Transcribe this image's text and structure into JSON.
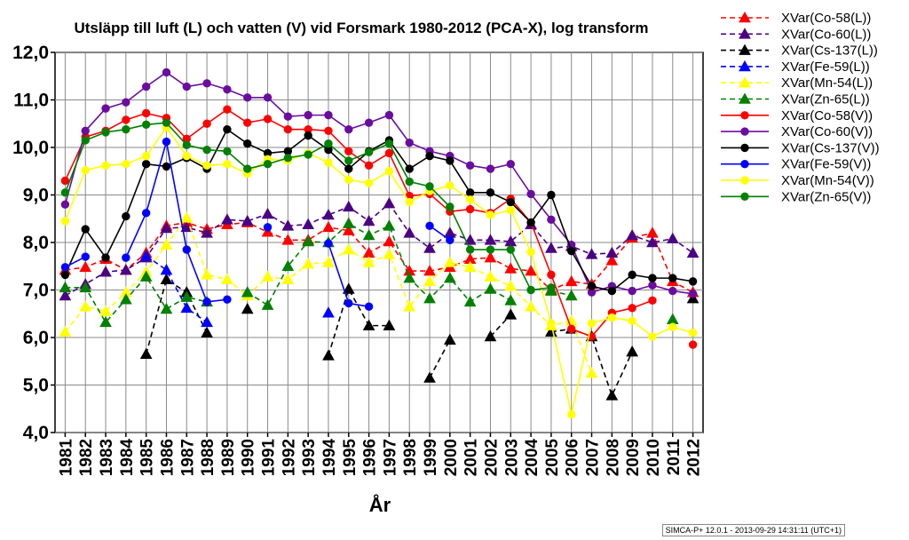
{
  "footer": "SIMCA-P+ 12.0.1 - 2013-09-29 14:31:11 (UTC+1)",
  "chart_data": {
    "type": "line",
    "title": "Utsläpp till luft (L) och vatten (V) vid Forsmark 1980-2012 (PCA-X),  log transform",
    "xlabel": "År",
    "ylabel": "",
    "ylim": [
      4.0,
      12.0
    ],
    "yticks": [
      "4,0",
      "5,0",
      "6,0",
      "7,0",
      "8,0",
      "9,0",
      "10,0",
      "11,0",
      "12,0"
    ],
    "categories": [
      "1981",
      "1982",
      "1983",
      "1984",
      "1985",
      "1986",
      "1987",
      "1988",
      "1989",
      "1990",
      "1991",
      "1992",
      "1993",
      "1994",
      "1995",
      "1996",
      "1997",
      "1998",
      "1999",
      "2000",
      "2001",
      "2002",
      "2003",
      "2004",
      "2005",
      "2006",
      "2007",
      "2008",
      "2009",
      "2010",
      "2011",
      "2012"
    ],
    "grid": true,
    "legend_position": "right",
    "series": [
      {
        "name": "XVar(Co-58(L))",
        "color": "#ff0000",
        "dashed": true,
        "marker": "triangle",
        "values": [
          7.42,
          7.48,
          7.65,
          7.42,
          7.78,
          8.35,
          8.42,
          8.28,
          8.38,
          8.42,
          8.22,
          8.05,
          8.05,
          8.32,
          8.25,
          7.78,
          8.02,
          7.4,
          7.4,
          7.48,
          7.65,
          7.68,
          7.45,
          7.4,
          7.0,
          7.18,
          7.12,
          7.62,
          8.1,
          8.2,
          7.18,
          6.95
        ]
      },
      {
        "name": "XVar(Co-60(L))",
        "color": "#4b0082",
        "dashed": true,
        "marker": "triangle",
        "values": [
          6.88,
          7.12,
          7.38,
          7.42,
          7.68,
          8.3,
          8.32,
          8.2,
          8.48,
          8.45,
          8.6,
          8.35,
          8.38,
          8.58,
          8.75,
          8.45,
          8.82,
          8.2,
          7.88,
          8.2,
          8.05,
          8.05,
          8.02,
          8.38,
          7.88,
          7.92,
          7.75,
          7.78,
          8.15,
          8.0,
          8.08,
          7.78
        ]
      },
      {
        "name": "XVar(Cs-137(L))",
        "color": "#000000",
        "dashed": true,
        "marker": "triangle",
        "values": [
          null,
          null,
          null,
          null,
          5.65,
          7.22,
          6.95,
          6.1,
          null,
          6.6,
          null,
          null,
          null,
          5.62,
          7.02,
          6.25,
          6.25,
          null,
          5.15,
          5.95,
          null,
          6.02,
          6.48,
          null,
          6.12,
          6.18,
          6.02,
          4.78,
          5.7,
          null,
          null,
          6.82
        ]
      },
      {
        "name": "XVar(Fe-59(L))",
        "color": "#0000ff",
        "dashed": true,
        "marker": "triangle",
        "values": [
          null,
          null,
          null,
          null,
          7.72,
          7.42,
          6.62,
          6.32,
          null,
          null,
          null,
          null,
          null,
          6.52,
          null,
          null,
          null,
          null,
          null,
          null,
          null,
          null,
          null,
          null,
          null,
          null,
          null,
          null,
          null,
          null,
          null,
          null
        ]
      },
      {
        "name": "XVar(Mn-54(L))",
        "color": "#ffff00",
        "dashed": true,
        "marker": "triangle",
        "values": [
          6.12,
          6.65,
          6.55,
          6.95,
          7.38,
          7.95,
          8.52,
          7.32,
          7.22,
          6.88,
          7.28,
          7.22,
          7.55,
          7.58,
          7.85,
          7.58,
          7.75,
          6.65,
          7.18,
          7.58,
          7.48,
          7.28,
          7.08,
          6.65,
          6.25,
          6.35,
          5.25,
          null,
          null,
          null,
          null,
          null
        ]
      },
      {
        "name": "XVar(Zn-65(L))",
        "color": "#008000",
        "dashed": true,
        "marker": "triangle",
        "values": [
          7.05,
          7.05,
          6.32,
          6.8,
          7.28,
          6.6,
          6.85,
          6.75,
          null,
          6.95,
          6.68,
          7.5,
          8.02,
          8.0,
          8.4,
          8.15,
          8.35,
          7.25,
          6.82,
          7.25,
          6.75,
          7.02,
          6.78,
          null,
          6.98,
          6.88,
          null,
          null,
          null,
          null,
          6.38,
          null
        ]
      },
      {
        "name": "XVar(Co-58(V))",
        "color": "#ff0000",
        "dashed": false,
        "marker": "circle",
        "values": [
          9.3,
          10.22,
          10.35,
          10.58,
          10.72,
          10.62,
          10.18,
          10.5,
          10.8,
          10.52,
          10.6,
          10.38,
          10.38,
          10.35,
          9.92,
          9.62,
          9.88,
          8.98,
          9.02,
          8.65,
          8.7,
          8.62,
          8.92,
          8.42,
          7.32,
          6.18,
          6.02,
          6.52,
          6.62,
          6.78,
          null,
          5.85
        ]
      },
      {
        "name": "XVar(Co-60(V))",
        "color": "#6a0d9f",
        "dashed": false,
        "marker": "circle",
        "values": [
          8.8,
          10.35,
          10.82,
          10.95,
          11.28,
          11.58,
          11.28,
          11.35,
          11.22,
          11.05,
          11.05,
          10.65,
          10.68,
          10.68,
          10.38,
          10.52,
          10.68,
          10.1,
          9.92,
          9.82,
          9.62,
          9.55,
          9.65,
          9.02,
          8.48,
          7.95,
          6.95,
          7.08,
          6.98,
          7.1,
          6.98,
          6.92
        ]
      },
      {
        "name": "XVar(Cs-137(V))",
        "color": "#000000",
        "dashed": false,
        "marker": "circle",
        "values": [
          7.32,
          8.28,
          7.68,
          8.55,
          9.65,
          9.6,
          9.78,
          9.55,
          10.38,
          10.08,
          9.88,
          9.92,
          10.25,
          9.95,
          9.55,
          9.92,
          10.15,
          9.55,
          9.82,
          9.72,
          9.05,
          9.05,
          8.85,
          8.42,
          9.0,
          7.82,
          7.08,
          6.98,
          7.32,
          7.25,
          7.25,
          7.18
        ]
      },
      {
        "name": "XVar(Fe-59(V))",
        "color": "#0000ff",
        "dashed": false,
        "marker": "circle",
        "values": [
          7.48,
          7.7,
          null,
          7.68,
          8.62,
          10.12,
          7.85,
          6.75,
          6.8,
          null,
          8.32,
          null,
          null,
          7.98,
          6.72,
          6.65,
          null,
          null,
          8.35,
          8.05,
          null,
          null,
          null,
          null,
          null,
          null,
          null,
          null,
          null,
          null,
          null,
          null
        ]
      },
      {
        "name": "XVar(Mn-54(V))",
        "color": "#ffff00",
        "dashed": false,
        "marker": "circle",
        "values": [
          8.45,
          9.52,
          9.62,
          9.65,
          9.82,
          10.42,
          9.82,
          9.62,
          9.65,
          9.45,
          9.75,
          9.72,
          9.88,
          9.68,
          9.32,
          9.25,
          9.5,
          8.85,
          9.08,
          9.2,
          8.9,
          8.58,
          8.68,
          7.8,
          6.3,
          4.38,
          6.3,
          6.42,
          6.35,
          6.02,
          6.22,
          6.1
        ]
      },
      {
        "name": "XVar(Zn-65(V))",
        "color": "#008000",
        "dashed": false,
        "marker": "circle",
        "values": [
          9.05,
          10.15,
          10.32,
          10.38,
          10.48,
          10.52,
          10.05,
          9.95,
          9.92,
          9.55,
          9.65,
          9.78,
          9.85,
          10.08,
          9.72,
          9.9,
          10.08,
          9.28,
          9.18,
          8.75,
          7.85,
          7.85,
          7.85,
          7.0,
          7.05,
          null,
          null,
          null,
          null,
          null,
          null,
          null
        ]
      }
    ]
  }
}
